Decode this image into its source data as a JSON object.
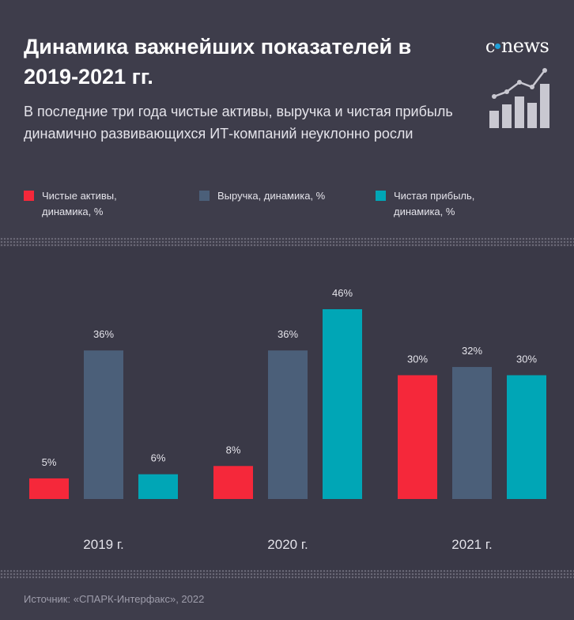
{
  "header": {
    "title": "Динамика важнейших показателей в 2019-2021 гг.",
    "subtitle": "В последние три года чистые активы, выручка и чистая прибыль динамично развивающихся ИТ-компаний неуклонно росли",
    "logo_text": "news"
  },
  "legend": [
    {
      "label": "Чистые активы, динамика, %",
      "color": "#f5283a"
    },
    {
      "label": "Выручка, динамика, %",
      "color": "#4b5f79"
    },
    {
      "label": "Чистая прибыль, динамика, %",
      "color": "#00a6b6"
    }
  ],
  "chart_data": {
    "type": "bar",
    "title": "Динамика важнейших показателей в 2019-2021 гг.",
    "categories": [
      "2019 г.",
      "2020 г.",
      "2021 г."
    ],
    "series": [
      {
        "name": "Чистые активы, динамика, %",
        "values": [
          5,
          8,
          30
        ],
        "labels": [
          "5%",
          "8%",
          "30%"
        ],
        "color": "#f5283a"
      },
      {
        "name": "Выручка, динамика, %",
        "values": [
          36,
          36,
          32
        ],
        "labels": [
          "36%",
          "36%",
          "32%"
        ],
        "color": "#4b5f79"
      },
      {
        "name": "Чистая прибыль, динамика, %",
        "values": [
          6,
          46,
          30
        ],
        "labels": [
          "6%",
          "46%",
          "30%"
        ],
        "color": "#00a6b6"
      }
    ],
    "ylim": [
      0,
      46
    ],
    "grid": false,
    "legend_position": "top"
  },
  "footer": {
    "source": "Источник: «СПАРК-Интерфакс», 2022"
  }
}
